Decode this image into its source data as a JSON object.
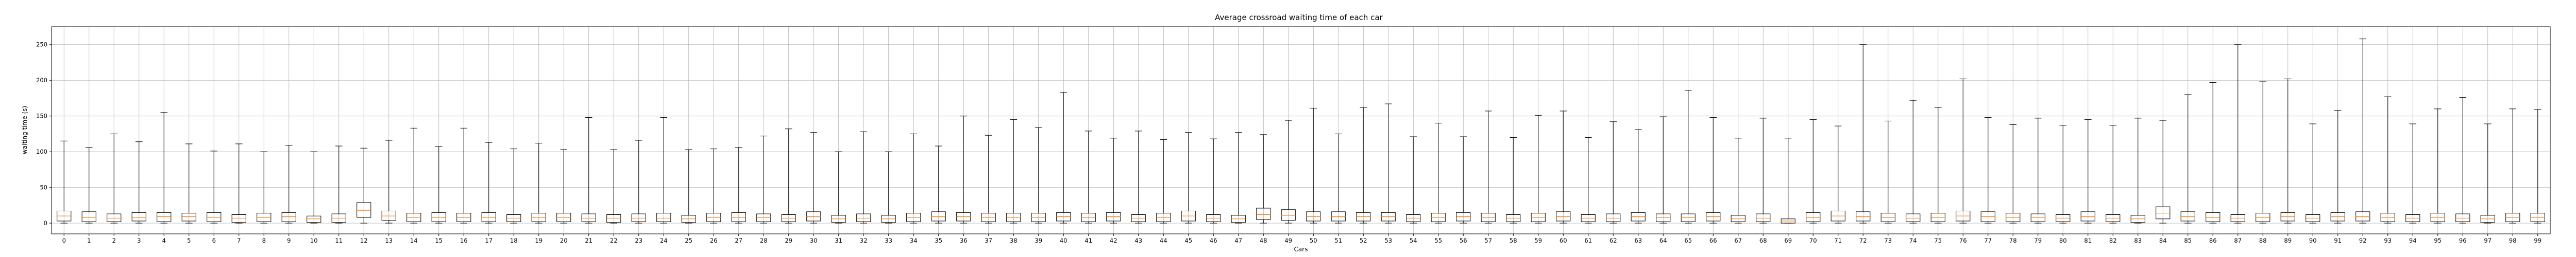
{
  "chart_data": {
    "type": "box",
    "title": "Average crossroad waiting time of each car",
    "xlabel": "Cars",
    "ylabel": "waiting time (s)",
    "ylim": [
      -15,
      275
    ],
    "yticks": [
      0,
      50,
      100,
      150,
      200,
      250
    ],
    "grid": true,
    "colors": {
      "box": "#000000",
      "median": "#ff7f0e",
      "grid": "#b0b0b0"
    },
    "categories": [
      "0",
      "1",
      "2",
      "3",
      "4",
      "5",
      "6",
      "7",
      "8",
      "9",
      "10",
      "11",
      "12",
      "13",
      "14",
      "15",
      "16",
      "17",
      "18",
      "19",
      "20",
      "21",
      "22",
      "23",
      "24",
      "25",
      "26",
      "27",
      "28",
      "29",
      "30",
      "31",
      "32",
      "33",
      "34",
      "35",
      "36",
      "37",
      "38",
      "39",
      "40",
      "41",
      "42",
      "43",
      "44",
      "45",
      "46",
      "47",
      "48",
      "49",
      "50",
      "51",
      "52",
      "53",
      "54",
      "55",
      "56",
      "57",
      "58",
      "59",
      "60",
      "61",
      "62",
      "63",
      "64",
      "65",
      "66",
      "67",
      "68",
      "69",
      "70",
      "71",
      "72",
      "73",
      "74",
      "75",
      "76",
      "77",
      "78",
      "79",
      "80",
      "81",
      "82",
      "83",
      "84",
      "85",
      "86",
      "87",
      "88",
      "89",
      "90",
      "91",
      "92",
      "93",
      "94",
      "95",
      "96",
      "97",
      "98",
      "99"
    ],
    "boxes": [
      {
        "min": 0,
        "q1": 3,
        "median": 10,
        "q3": 17,
        "max": 115
      },
      {
        "min": 0,
        "q1": 2,
        "median": 8,
        "q3": 16,
        "max": 106
      },
      {
        "min": 0,
        "q1": 2,
        "median": 7,
        "q3": 13,
        "max": 125
      },
      {
        "min": 0,
        "q1": 3,
        "median": 8,
        "q3": 15,
        "max": 114
      },
      {
        "min": 0,
        "q1": 2,
        "median": 9,
        "q3": 15,
        "max": 155
      },
      {
        "min": 0,
        "q1": 3,
        "median": 9,
        "q3": 14,
        "max": 111
      },
      {
        "min": 0,
        "q1": 2,
        "median": 8,
        "q3": 15,
        "max": 101
      },
      {
        "min": 0,
        "q1": 1,
        "median": 7,
        "q3": 12,
        "max": 111
      },
      {
        "min": 0,
        "q1": 2,
        "median": 8,
        "q3": 14,
        "max": 100
      },
      {
        "min": 0,
        "q1": 2,
        "median": 9,
        "q3": 15,
        "max": 109
      },
      {
        "min": 0,
        "q1": 1,
        "median": 6,
        "q3": 10,
        "max": 100
      },
      {
        "min": 0,
        "q1": 1,
        "median": 7,
        "q3": 13,
        "max": 108
      },
      {
        "min": 0,
        "q1": 8,
        "median": 18,
        "q3": 29,
        "max": 105
      },
      {
        "min": 0,
        "q1": 4,
        "median": 10,
        "q3": 17,
        "max": 116
      },
      {
        "min": 0,
        "q1": 2,
        "median": 8,
        "q3": 14,
        "max": 133
      },
      {
        "min": 0,
        "q1": 2,
        "median": 8,
        "q3": 15,
        "max": 107
      },
      {
        "min": 0,
        "q1": 2,
        "median": 8,
        "q3": 14,
        "max": 133
      },
      {
        "min": 0,
        "q1": 2,
        "median": 8,
        "q3": 15,
        "max": 113
      },
      {
        "min": 0,
        "q1": 2,
        "median": 7,
        "q3": 12,
        "max": 104
      },
      {
        "min": 0,
        "q1": 2,
        "median": 8,
        "q3": 14,
        "max": 112
      },
      {
        "min": 0,
        "q1": 2,
        "median": 8,
        "q3": 14,
        "max": 103
      },
      {
        "min": 0,
        "q1": 2,
        "median": 7,
        "q3": 13,
        "max": 148
      },
      {
        "min": 0,
        "q1": 1,
        "median": 7,
        "q3": 12,
        "max": 103
      },
      {
        "min": 0,
        "q1": 2,
        "median": 7,
        "q3": 13,
        "max": 116
      },
      {
        "min": 0,
        "q1": 2,
        "median": 7,
        "q3": 14,
        "max": 148
      },
      {
        "min": 0,
        "q1": 1,
        "median": 6,
        "q3": 11,
        "max": 103
      },
      {
        "min": 0,
        "q1": 2,
        "median": 8,
        "q3": 14,
        "max": 104
      },
      {
        "min": 0,
        "q1": 2,
        "median": 8,
        "q3": 15,
        "max": 106
      },
      {
        "min": 0,
        "q1": 2,
        "median": 8,
        "q3": 13,
        "max": 122
      },
      {
        "min": 0,
        "q1": 2,
        "median": 7,
        "q3": 12,
        "max": 132
      },
      {
        "min": 0,
        "q1": 3,
        "median": 9,
        "q3": 16,
        "max": 127
      },
      {
        "min": 0,
        "q1": 1,
        "median": 6,
        "q3": 11,
        "max": 100
      },
      {
        "min": 0,
        "q1": 2,
        "median": 7,
        "q3": 13,
        "max": 128
      },
      {
        "min": 0,
        "q1": 1,
        "median": 6,
        "q3": 11,
        "max": 100
      },
      {
        "min": 0,
        "q1": 2,
        "median": 8,
        "q3": 14,
        "max": 125
      },
      {
        "min": 0,
        "q1": 3,
        "median": 9,
        "q3": 16,
        "max": 108
      },
      {
        "min": 0,
        "q1": 3,
        "median": 9,
        "q3": 15,
        "max": 150
      },
      {
        "min": 0,
        "q1": 2,
        "median": 8,
        "q3": 14,
        "max": 123
      },
      {
        "min": 0,
        "q1": 2,
        "median": 8,
        "q3": 14,
        "max": 145
      },
      {
        "min": 0,
        "q1": 2,
        "median": 8,
        "q3": 14,
        "max": 134
      },
      {
        "min": 0,
        "q1": 3,
        "median": 9,
        "q3": 15,
        "max": 183
      },
      {
        "min": 0,
        "q1": 2,
        "median": 8,
        "q3": 14,
        "max": 129
      },
      {
        "min": 0,
        "q1": 3,
        "median": 9,
        "q3": 15,
        "max": 119
      },
      {
        "min": 0,
        "q1": 2,
        "median": 7,
        "q3": 12,
        "max": 129
      },
      {
        "min": 0,
        "q1": 2,
        "median": 8,
        "q3": 14,
        "max": 117
      },
      {
        "min": 0,
        "q1": 3,
        "median": 10,
        "q3": 17,
        "max": 127
      },
      {
        "min": 0,
        "q1": 2,
        "median": 7,
        "q3": 12,
        "max": 118
      },
      {
        "min": 0,
        "q1": 1,
        "median": 6,
        "q3": 11,
        "max": 127
      },
      {
        "min": 0,
        "q1": 5,
        "median": 12,
        "q3": 21,
        "max": 124
      },
      {
        "min": 0,
        "q1": 4,
        "median": 11,
        "q3": 19,
        "max": 144
      },
      {
        "min": 0,
        "q1": 3,
        "median": 9,
        "q3": 16,
        "max": 161
      },
      {
        "min": 0,
        "q1": 3,
        "median": 9,
        "q3": 16,
        "max": 125
      },
      {
        "min": 0,
        "q1": 3,
        "median": 9,
        "q3": 15,
        "max": 162
      },
      {
        "min": 0,
        "q1": 3,
        "median": 9,
        "q3": 15,
        "max": 167
      },
      {
        "min": 0,
        "q1": 2,
        "median": 7,
        "q3": 12,
        "max": 121
      },
      {
        "min": 0,
        "q1": 2,
        "median": 8,
        "q3": 14,
        "max": 140
      },
      {
        "min": 0,
        "q1": 3,
        "median": 9,
        "q3": 15,
        "max": 121
      },
      {
        "min": 0,
        "q1": 2,
        "median": 8,
        "q3": 14,
        "max": 157
      },
      {
        "min": 0,
        "q1": 2,
        "median": 7,
        "q3": 12,
        "max": 120
      },
      {
        "min": 0,
        "q1": 2,
        "median": 8,
        "q3": 14,
        "max": 151
      },
      {
        "min": 0,
        "q1": 3,
        "median": 9,
        "q3": 16,
        "max": 157
      },
      {
        "min": 0,
        "q1": 2,
        "median": 7,
        "q3": 12,
        "max": 120
      },
      {
        "min": 0,
        "q1": 2,
        "median": 7,
        "q3": 13,
        "max": 142
      },
      {
        "min": 0,
        "q1": 3,
        "median": 9,
        "q3": 15,
        "max": 131
      },
      {
        "min": 0,
        "q1": 2,
        "median": 8,
        "q3": 13,
        "max": 149
      },
      {
        "min": 0,
        "q1": 2,
        "median": 8,
        "q3": 13,
        "max": 186
      },
      {
        "min": 0,
        "q1": 3,
        "median": 9,
        "q3": 15,
        "max": 148
      },
      {
        "min": 0,
        "q1": 2,
        "median": 6,
        "q3": 11,
        "max": 119
      },
      {
        "min": 0,
        "q1": 2,
        "median": 7,
        "q3": 13,
        "max": 147
      },
      {
        "min": 0,
        "q1": 0,
        "median": 3,
        "q3": 6,
        "max": 119
      },
      {
        "min": 0,
        "q1": 2,
        "median": 8,
        "q3": 15,
        "max": 145
      },
      {
        "min": 0,
        "q1": 3,
        "median": 10,
        "q3": 17,
        "max": 136
      },
      {
        "min": 0,
        "q1": 3,
        "median": 9,
        "q3": 16,
        "max": 250
      },
      {
        "min": 0,
        "q1": 2,
        "median": 8,
        "q3": 14,
        "max": 143
      },
      {
        "min": 0,
        "q1": 2,
        "median": 7,
        "q3": 13,
        "max": 172
      },
      {
        "min": 0,
        "q1": 2,
        "median": 8,
        "q3": 14,
        "max": 162
      },
      {
        "min": 0,
        "q1": 3,
        "median": 10,
        "q3": 17,
        "max": 202
      },
      {
        "min": 0,
        "q1": 2,
        "median": 9,
        "q3": 16,
        "max": 148
      },
      {
        "min": 0,
        "q1": 2,
        "median": 8,
        "q3": 14,
        "max": 138
      },
      {
        "min": 0,
        "q1": 2,
        "median": 8,
        "q3": 13,
        "max": 147
      },
      {
        "min": 0,
        "q1": 2,
        "median": 7,
        "q3": 12,
        "max": 137
      },
      {
        "min": 0,
        "q1": 3,
        "median": 9,
        "q3": 16,
        "max": 145
      },
      {
        "min": 0,
        "q1": 2,
        "median": 7,
        "q3": 12,
        "max": 137
      },
      {
        "min": 0,
        "q1": 1,
        "median": 6,
        "q3": 11,
        "max": 147
      },
      {
        "min": 0,
        "q1": 6,
        "median": 14,
        "q3": 23,
        "max": 144
      },
      {
        "min": 0,
        "q1": 3,
        "median": 9,
        "q3": 16,
        "max": 180
      },
      {
        "min": 0,
        "q1": 2,
        "median": 8,
        "q3": 15,
        "max": 197
      },
      {
        "min": 0,
        "q1": 2,
        "median": 7,
        "q3": 12,
        "max": 250
      },
      {
        "min": 0,
        "q1": 2,
        "median": 8,
        "q3": 14,
        "max": 198
      },
      {
        "min": 0,
        "q1": 3,
        "median": 9,
        "q3": 15,
        "max": 202
      },
      {
        "min": 0,
        "q1": 2,
        "median": 7,
        "q3": 12,
        "max": 139
      },
      {
        "min": 0,
        "q1": 3,
        "median": 9,
        "q3": 15,
        "max": 158
      },
      {
        "min": 0,
        "q1": 3,
        "median": 9,
        "q3": 16,
        "max": 258
      },
      {
        "min": 0,
        "q1": 2,
        "median": 8,
        "q3": 14,
        "max": 177
      },
      {
        "min": 0,
        "q1": 2,
        "median": 7,
        "q3": 12,
        "max": 139
      },
      {
        "min": 0,
        "q1": 2,
        "median": 8,
        "q3": 14,
        "max": 160
      },
      {
        "min": 0,
        "q1": 2,
        "median": 7,
        "q3": 13,
        "max": 176
      },
      {
        "min": 0,
        "q1": 1,
        "median": 6,
        "q3": 11,
        "max": 139
      },
      {
        "min": 0,
        "q1": 2,
        "median": 8,
        "q3": 14,
        "max": 160
      },
      {
        "min": 0,
        "q1": 2,
        "median": 8,
        "q3": 14,
        "max": 159
      }
    ]
  }
}
